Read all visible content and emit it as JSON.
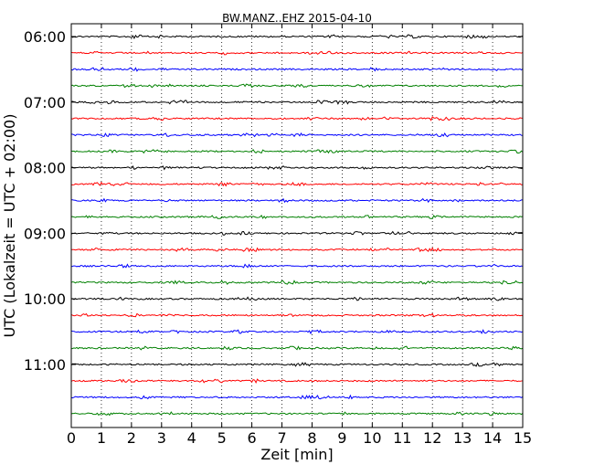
{
  "chart_data": {
    "type": "line",
    "title": "BW.MANZ..EHZ 2015-04-10",
    "xlabel": "Zeit  [min]",
    "ylabel": "UTC (Lokalzeit = UTC + 02:00)",
    "xlim": [
      0,
      15
    ],
    "x_ticks": [
      "0",
      "1",
      "2",
      "3",
      "4",
      "5",
      "6",
      "7",
      "8",
      "9",
      "10",
      "11",
      "12",
      "13",
      "14",
      "15"
    ],
    "y_tick_labels": [
      "06:00",
      "07:00",
      "08:00",
      "09:00",
      "10:00",
      "11:00"
    ],
    "trace_count": 24,
    "trace_interval_min": 15,
    "trace_color_cycle": [
      "#000000",
      "#ff0000",
      "#0000ff",
      "#008000"
    ],
    "grid": "vertical dotted",
    "series_start_times": [
      "06:00",
      "06:15",
      "06:30",
      "06:45",
      "07:00",
      "07:15",
      "07:30",
      "07:45",
      "08:00",
      "08:15",
      "08:30",
      "08:45",
      "09:00",
      "09:15",
      "09:30",
      "09:45",
      "10:00",
      "10:15",
      "10:30",
      "10:45",
      "11:00",
      "11:15",
      "11:30",
      "11:45"
    ]
  }
}
